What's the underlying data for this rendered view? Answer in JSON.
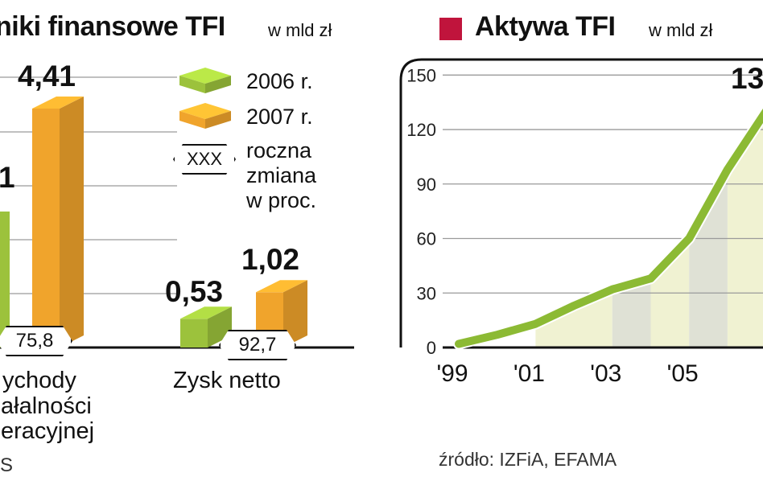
{
  "left_panel": {
    "title": "niki finansowe TFI",
    "unit": "w mld zł",
    "legend": [
      {
        "label": "2006 r.",
        "color": "#9cc23c"
      },
      {
        "label": "2007 r.",
        "color": "#f0a42c"
      }
    ],
    "legend_badge": "XXX",
    "legend_badge_text": [
      "roczna",
      "zmiana",
      "w proc."
    ],
    "source_fragment": "S"
  },
  "right_panel": {
    "title": "Aktywa TFI",
    "unit": "w mld zł",
    "title_square_color": "#c0143c",
    "source": "źródło: IZFiA, EFAMA"
  },
  "chart_data": [
    {
      "type": "bar",
      "categories": [
        [
          "ychody",
          "ałalności",
          "eracyjnej"
        ],
        [
          "Zysk netto"
        ]
      ],
      "series": [
        {
          "name": "2006 r.",
          "values": [
            2.51,
            0.53
          ],
          "labels": [
            "1",
            "0,53"
          ]
        },
        {
          "name": "2007 r.",
          "values": [
            4.41,
            1.02
          ],
          "labels": [
            "4,41",
            "1,02"
          ]
        }
      ],
      "annotations": [
        "75,8",
        "92,7"
      ],
      "colors": {
        "2006 r.": "#9cc23c",
        "2007 r.": "#f0a42c"
      }
    },
    {
      "type": "line",
      "x": [
        1999,
        2000,
        2001,
        2002,
        2003,
        2004,
        2005,
        2006,
        2007
      ],
      "y": [
        2,
        7,
        13,
        23,
        32,
        38,
        60,
        98,
        130
      ],
      "ylim": [
        0,
        150
      ],
      "yticks": [
        0,
        30,
        60,
        90,
        120,
        150
      ],
      "xtick_labels": [
        "'99",
        "'01",
        "'03",
        "'05"
      ],
      "xtick_values": [
        1999,
        2001,
        2003,
        2005
      ],
      "value_label": "13",
      "grid": true,
      "line_color": "#8cba34",
      "fill_colors": [
        "#f0f2d2",
        "#dfe1d5"
      ]
    }
  ]
}
